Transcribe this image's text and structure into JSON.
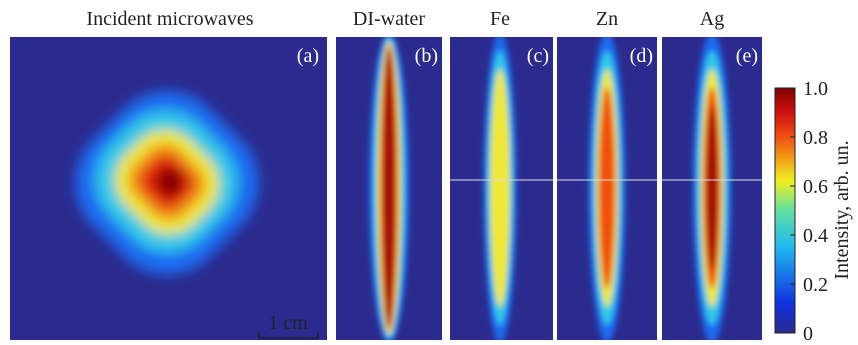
{
  "panels": [
    {
      "title": "Incident microwaves",
      "tag": "(a)"
    },
    {
      "title": "DI-water",
      "tag": "(b)"
    },
    {
      "title": "Fe",
      "tag": "(c)"
    },
    {
      "title": "Zn",
      "tag": "(d)"
    },
    {
      "title": "Ag",
      "tag": "(e)"
    }
  ],
  "scale_bar": "1 cm",
  "colorbar": {
    "label": "Intensity, arb. un.",
    "lim": [
      0,
      1.0
    ],
    "ticks": [
      0,
      0.2,
      0.4,
      0.6,
      0.8,
      {
        "value": 1.0,
        "label": "1.0"
      }
    ]
  }
}
